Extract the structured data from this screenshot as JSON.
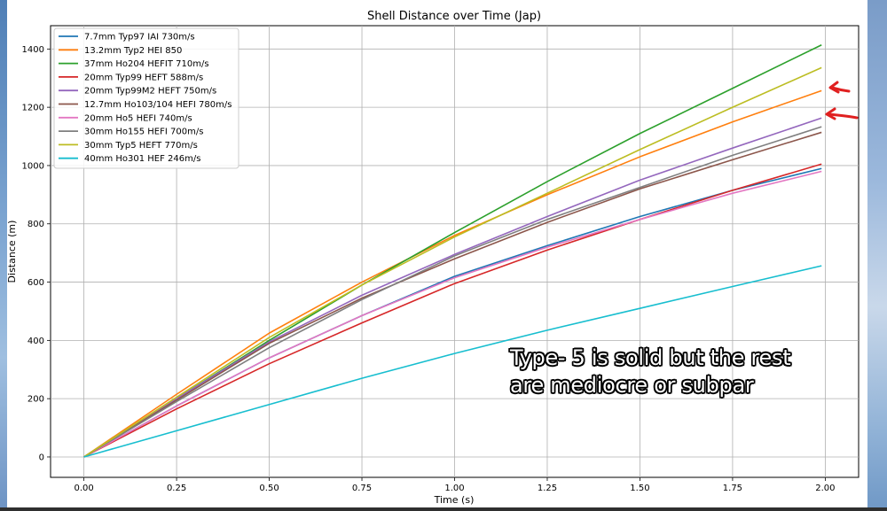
{
  "chart_data": {
    "type": "line",
    "title": "Shell Distance over Time (Jap)",
    "xlabel": "Time (s)",
    "ylabel": "Distance (m)",
    "xlim": [
      -0.09,
      2.09
    ],
    "ylim": [
      -70,
      1480
    ],
    "xticks": [
      "0.00",
      "0.25",
      "0.50",
      "0.75",
      "1.00",
      "1.25",
      "1.50",
      "1.75",
      "2.00"
    ],
    "yticks": [
      "0",
      "200",
      "400",
      "600",
      "800",
      "1000",
      "1200",
      "1400"
    ],
    "grid": true,
    "legend_position": "top-left",
    "x": [
      0,
      0.25,
      0.5,
      0.75,
      1.0,
      1.25,
      1.5,
      1.75,
      1.99
    ],
    "series": [
      {
        "name": "7.7mm Typ97 IAI 730m/s",
        "color": "#1f77b4",
        "values": [
          0,
          175,
          340,
          485,
          620,
          725,
          825,
          915,
          990
        ]
      },
      {
        "name": "13.2mm Typ2 HEI 850",
        "color": "#ff7f0e",
        "values": [
          0,
          215,
          425,
          600,
          760,
          900,
          1030,
          1150,
          1257
        ]
      },
      {
        "name": "37mm Ho204 HEFIT 710m/s",
        "color": "#2ca02c",
        "values": [
          0,
          200,
          400,
          590,
          770,
          945,
          1110,
          1265,
          1414
        ]
      },
      {
        "name": "20mm Typ99 HEFT 588m/s",
        "color": "#d62728",
        "values": [
          0,
          165,
          320,
          460,
          595,
          710,
          815,
          915,
          1005
        ]
      },
      {
        "name": "20mm Typ99M2 HEFT 750m/s",
        "color": "#9467bd",
        "values": [
          0,
          200,
          395,
          555,
          695,
          825,
          950,
          1060,
          1163
        ]
      },
      {
        "name": "12.7mm Ho103/104 HEFI 780m/s",
        "color": "#8c564b",
        "values": [
          0,
          195,
          390,
          545,
          680,
          805,
          920,
          1020,
          1114
        ]
      },
      {
        "name": "20mm Ho5 HEFI 740m/s",
        "color": "#e377c2",
        "values": [
          0,
          175,
          340,
          485,
          615,
          720,
          815,
          905,
          980
        ]
      },
      {
        "name": "30mm Ho155 HEFI 700m/s",
        "color": "#7f7f7f",
        "values": [
          0,
          190,
          375,
          540,
          690,
          815,
          925,
          1035,
          1133
        ]
      },
      {
        "name": "30mm Typ5 HEFT 770m/s",
        "color": "#bcbd22",
        "values": [
          0,
          205,
          410,
          590,
          755,
          905,
          1055,
          1200,
          1336
        ]
      },
      {
        "name": "40mm Ho301 HEF 246m/s",
        "color": "#17becf",
        "values": [
          0,
          90,
          180,
          270,
          355,
          435,
          510,
          585,
          656
        ]
      }
    ],
    "annotations": [
      {
        "text_lines": [
          "Type- 5 is solid but the rest",
          "are mediocre or subpar"
        ],
        "color": "#ffffff"
      },
      {
        "type": "arrow",
        "color": "#e02020",
        "points_to": "13.2mm Typ2 HEI 850"
      },
      {
        "type": "arrow",
        "color": "#e02020",
        "points_to": "20mm Typ99M2 HEFT 750m/s"
      }
    ]
  }
}
